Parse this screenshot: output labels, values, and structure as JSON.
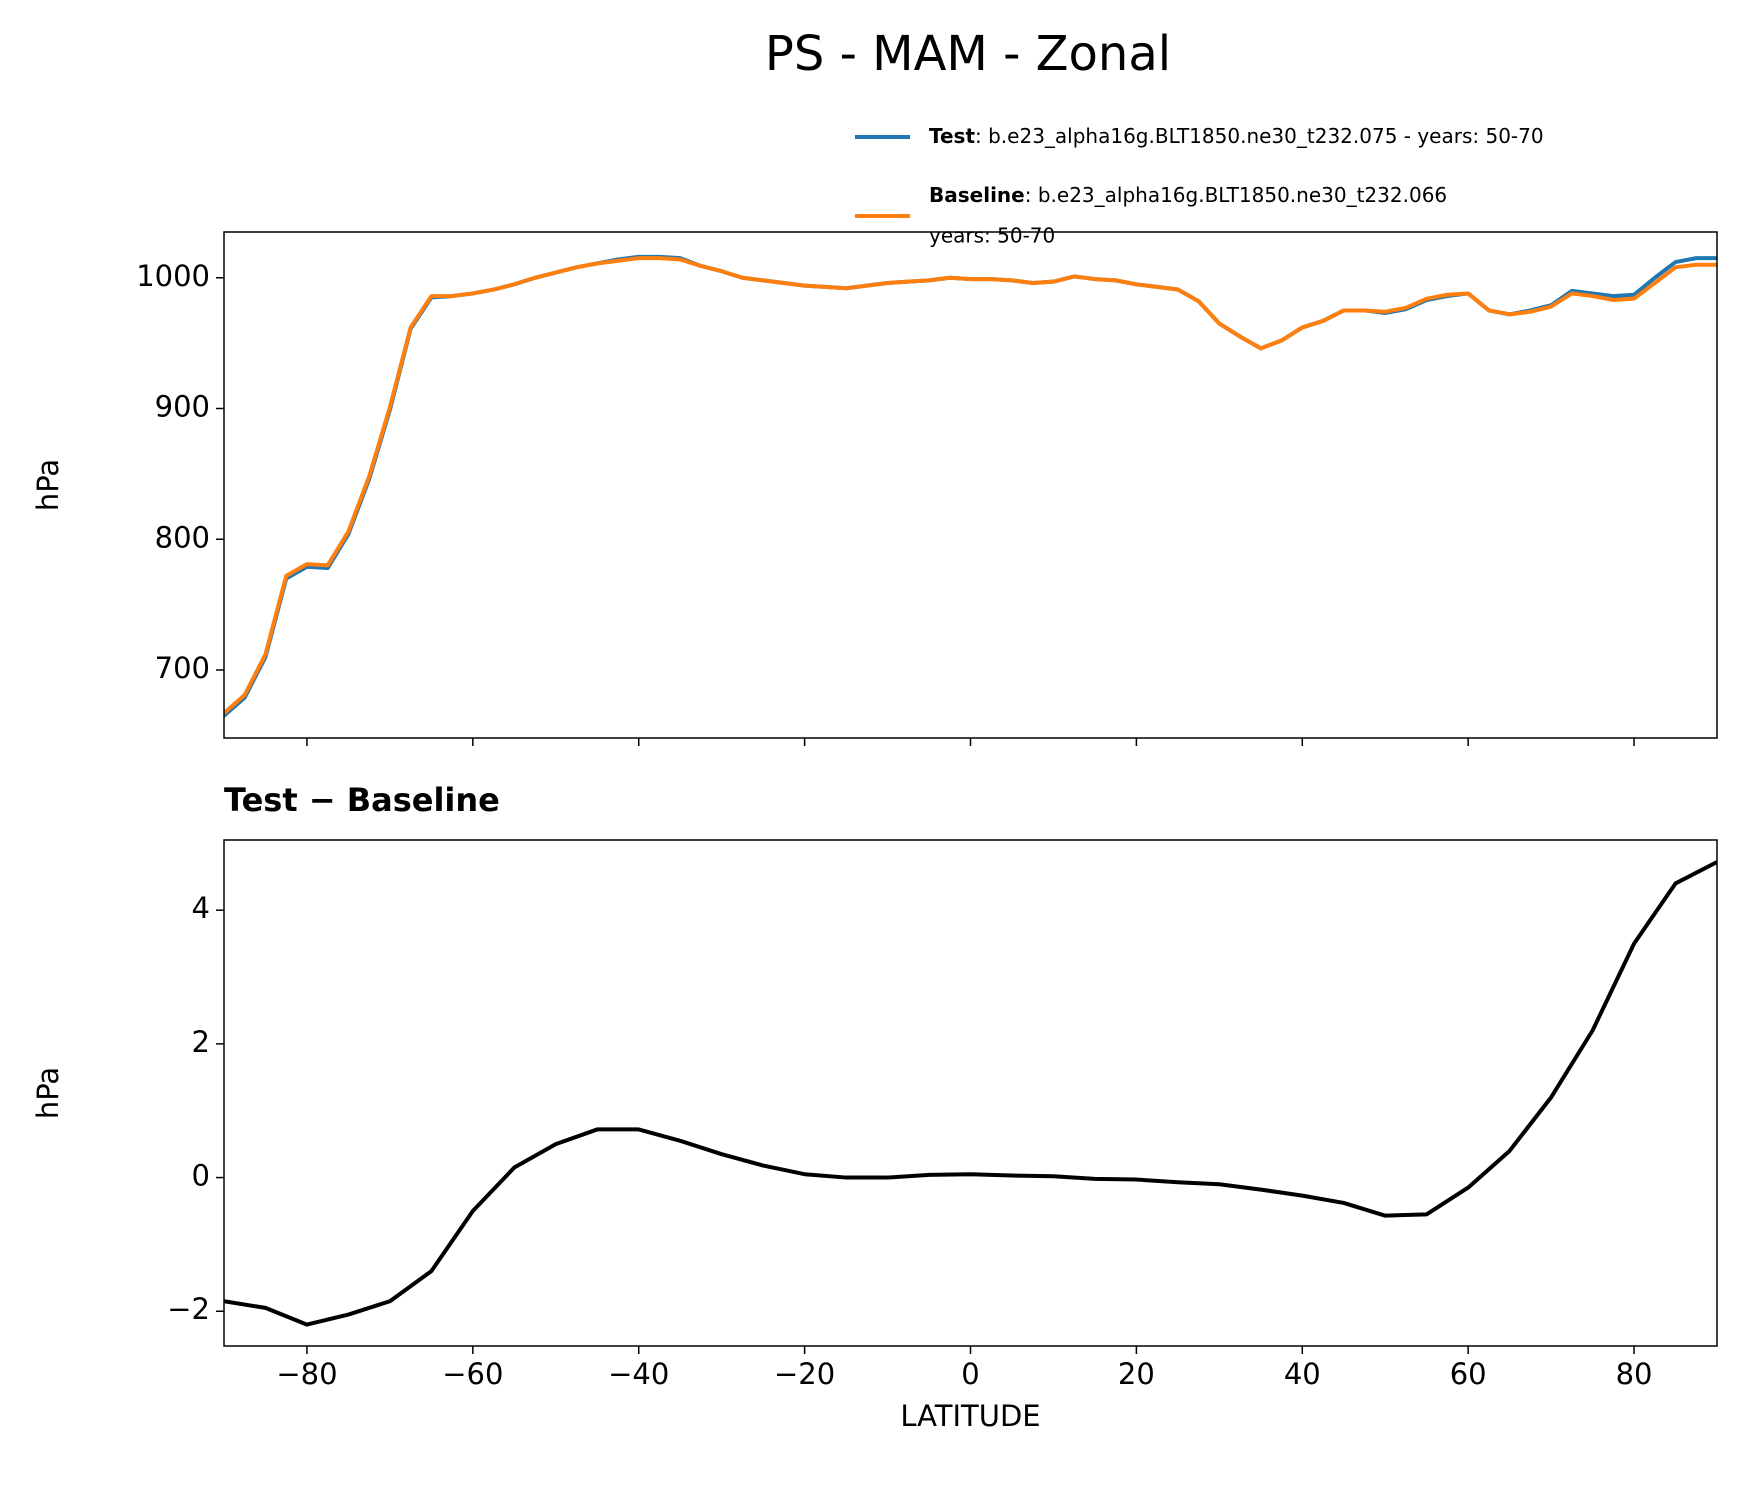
{
  "chart_data": [
    {
      "type": "line",
      "title": "PS - MAM - Zonal",
      "ylabel": "hPa",
      "x": [
        -90,
        -87.5,
        -85,
        -82.5,
        -80,
        -77.5,
        -75,
        -72.5,
        -70,
        -67.5,
        -65,
        -62.5,
        -60,
        -57.5,
        -55,
        -52.5,
        -50,
        -47.5,
        -45,
        -42.5,
        -40,
        -37.5,
        -35,
        -32.5,
        -30,
        -27.5,
        -25,
        -22.5,
        -20,
        -17.5,
        -15,
        -12.5,
        -10,
        -7.5,
        -5,
        -2.5,
        0,
        2.5,
        5,
        7.5,
        10,
        12.5,
        15,
        17.5,
        20,
        22.5,
        25,
        27.5,
        30,
        32.5,
        35,
        37.5,
        40,
        42.5,
        45,
        47.5,
        50,
        52.5,
        55,
        57.5,
        60,
        62.5,
        65,
        67.5,
        70,
        72.5,
        75,
        77.5,
        80,
        82.5,
        85,
        87.5,
        90
      ],
      "series": [
        {
          "name": "Test",
          "legend_text": [
            ": b.e23_alpha16g.BLT1850.ne30_t232.075 - years: 50-70"
          ],
          "color": "#1f77b4",
          "values": [
            665,
            679,
            710,
            770,
            779,
            778,
            804,
            846,
            899,
            961,
            985,
            986,
            988,
            991,
            995,
            1000,
            1004,
            1008,
            1011,
            1014,
            1016,
            1016,
            1015,
            1009,
            1005,
            1000,
            998,
            996,
            994,
            993,
            992,
            994,
            996,
            997,
            998,
            1000,
            999,
            999,
            998,
            996,
            997,
            1001,
            999,
            998,
            995,
            993,
            991,
            982,
            965,
            955,
            946,
            952,
            962,
            967,
            975,
            975,
            973,
            976,
            983,
            986,
            988,
            975,
            972,
            975,
            979,
            990,
            988,
            986,
            987,
            1000,
            1012,
            1015,
            1015
          ]
        },
        {
          "name": "Baseline",
          "legend_text": [
            ": b.e23_alpha16g.BLT1850.ne30_t232.066",
            "years: 50-70"
          ],
          "color": "#ff7f0e",
          "values": [
            667,
            681,
            712,
            772,
            781,
            780,
            806,
            848,
            901,
            962,
            986,
            986,
            988,
            991,
            995,
            1000,
            1004,
            1008,
            1011,
            1013,
            1015,
            1015,
            1014,
            1009,
            1005,
            1000,
            998,
            996,
            994,
            993,
            992,
            994,
            996,
            997,
            998,
            1000,
            999,
            999,
            998,
            996,
            997,
            1001,
            999,
            998,
            995,
            993,
            991,
            982,
            965,
            955,
            946,
            952,
            962,
            967,
            975,
            975,
            974,
            977,
            984,
            987,
            988,
            975,
            972,
            974,
            978,
            988,
            986,
            983,
            984,
            996,
            1008,
            1010,
            1010
          ]
        }
      ],
      "xlim": [
        -90,
        90
      ],
      "xticks": [
        -80,
        -60,
        -40,
        -20,
        0,
        20,
        40,
        60,
        80
      ],
      "ylim": [
        648,
        1035
      ],
      "yticks": [
        700,
        800,
        900,
        1000
      ]
    },
    {
      "type": "line",
      "title": "Test − Baseline",
      "ylabel": "hPa",
      "xlabel": "LATITUDE",
      "x": [
        -90,
        -85,
        -80,
        -75,
        -70,
        -65,
        -60,
        -55,
        -50,
        -45,
        -40,
        -35,
        -30,
        -25,
        -20,
        -15,
        -10,
        -5,
        0,
        5,
        10,
        15,
        20,
        25,
        30,
        35,
        40,
        45,
        50,
        55,
        60,
        65,
        70,
        75,
        80,
        85,
        90
      ],
      "series": [
        {
          "name": "Test − Baseline",
          "color": "#000000",
          "values": [
            -1.85,
            -1.95,
            -2.2,
            -2.05,
            -1.85,
            -1.4,
            -0.5,
            0.15,
            0.5,
            0.72,
            0.72,
            0.55,
            0.35,
            0.18,
            0.05,
            0.0,
            0.0,
            0.04,
            0.05,
            0.03,
            0.02,
            -0.02,
            -0.03,
            -0.07,
            -0.1,
            -0.18,
            -0.27,
            -0.38,
            -0.57,
            -0.55,
            -0.15,
            0.4,
            1.2,
            2.2,
            3.5,
            4.4,
            4.72
          ]
        }
      ],
      "xlim": [
        -90,
        90
      ],
      "xticks": [
        {
          "value": -80,
          "label": "−80"
        },
        {
          "value": -60,
          "label": "−60"
        },
        {
          "value": -40,
          "label": "−40"
        },
        {
          "value": -20,
          "label": "−20"
        },
        0,
        20,
        40,
        60,
        80
      ],
      "ylim": [
        -2.52,
        5.05
      ],
      "yticks": [
        {
          "value": -2,
          "label": "−2"
        },
        0,
        2,
        4
      ]
    }
  ]
}
